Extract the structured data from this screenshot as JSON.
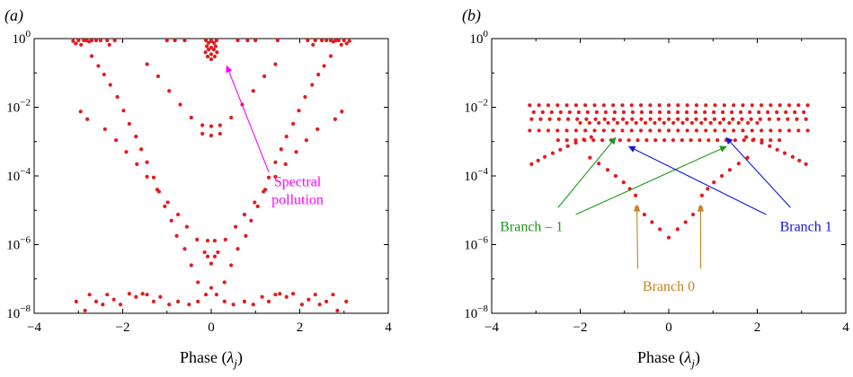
{
  "chart_data": [
    {
      "type": "scatter",
      "panel_label": "(a)",
      "xlabel": "Phase (λj)",
      "ylabel": "",
      "xlim": [
        -4,
        4
      ],
      "ylim": [
        1e-08,
        1
      ],
      "yscale": "log",
      "x_ticks": [
        -4,
        -2,
        0,
        2,
        4
      ],
      "y_ticks": [
        "10^0",
        "10^-2",
        "10^-4",
        "10^-6",
        "10^-8"
      ],
      "grid": false,
      "marker_color": "#e41a1c",
      "points": [
        [
          -3.12,
          0.85
        ],
        [
          -3.06,
          0.72
        ],
        [
          -3.0,
          0.9
        ],
        [
          -2.94,
          0.66
        ],
        [
          -2.88,
          1.0
        ],
        [
          -2.82,
          0.95
        ],
        [
          -2.76,
          0.82
        ],
        [
          -2.7,
          1.0
        ],
        [
          -2.6,
          0.98
        ],
        [
          -2.5,
          1.0
        ],
        [
          -2.35,
          0.9
        ],
        [
          -2.18,
          0.95
        ],
        [
          -1.0,
          0.97
        ],
        [
          -0.82,
          1.0
        ],
        [
          -0.6,
          0.96
        ],
        [
          -0.12,
          0.95
        ],
        [
          0.0,
          0.88
        ],
        [
          0.12,
          0.95
        ],
        [
          -0.06,
          0.75
        ],
        [
          0.06,
          0.75
        ],
        [
          -0.1,
          0.6
        ],
        [
          0.1,
          0.6
        ],
        [
          0.0,
          0.55
        ],
        [
          -0.06,
          0.48
        ],
        [
          0.06,
          0.48
        ],
        [
          -0.13,
          0.4
        ],
        [
          0.13,
          0.4
        ],
        [
          0.0,
          0.35
        ],
        [
          -0.08,
          0.3
        ],
        [
          0.08,
          0.3
        ],
        [
          0.0,
          0.25
        ],
        [
          0.6,
          0.96
        ],
        [
          0.82,
          1.0
        ],
        [
          1.0,
          0.97
        ],
        [
          1.5,
          0.95
        ],
        [
          2.18,
          0.95
        ],
        [
          2.35,
          0.9
        ],
        [
          2.5,
          1.0
        ],
        [
          2.6,
          0.98
        ],
        [
          2.7,
          1.0
        ],
        [
          2.76,
          0.82
        ],
        [
          2.82,
          0.95
        ],
        [
          2.88,
          1.0
        ],
        [
          2.94,
          0.66
        ],
        [
          3.0,
          0.9
        ],
        [
          3.06,
          0.72
        ],
        [
          3.12,
          0.85
        ],
        [
          2.3,
          0.66
        ],
        [
          -2.3,
          0.66
        ],
        [
          -2.7,
          0.31
        ],
        [
          -2.55,
          0.16
        ],
        [
          -2.42,
          0.09
        ],
        [
          -2.28,
          0.045
        ],
        [
          -2.12,
          0.02
        ],
        [
          -1.98,
          0.008
        ],
        [
          -1.85,
          0.0033
        ],
        [
          -1.7,
          0.0014
        ],
        [
          -1.58,
          0.0006
        ],
        [
          -1.45,
          0.00025
        ],
        [
          -1.3,
          9e-05
        ],
        [
          -1.18,
          3.5e-05
        ],
        [
          -1.05,
          1.3e-05
        ],
        [
          -0.9,
          5e-06
        ],
        [
          -0.78,
          1.8e-06
        ],
        [
          -0.6,
          7.5e-07
        ],
        [
          -0.45,
          2.5e-07
        ],
        [
          -0.3,
          8e-08
        ],
        [
          2.7,
          0.31
        ],
        [
          2.55,
          0.16
        ],
        [
          2.42,
          0.09
        ],
        [
          2.28,
          0.045
        ],
        [
          2.12,
          0.02
        ],
        [
          1.98,
          0.008
        ],
        [
          1.85,
          0.0033
        ],
        [
          1.7,
          0.0014
        ],
        [
          1.58,
          0.0006
        ],
        [
          1.45,
          0.00025
        ],
        [
          1.3,
          9e-05
        ],
        [
          1.18,
          3.5e-05
        ],
        [
          1.05,
          1.3e-05
        ],
        [
          0.9,
          5e-06
        ],
        [
          0.78,
          1.8e-06
        ],
        [
          0.6,
          7.5e-07
        ],
        [
          0.45,
          2.5e-07
        ],
        [
          0.3,
          8e-08
        ],
        [
          -1.45,
          0.18
        ],
        [
          -1.2,
          0.08
        ],
        [
          -0.95,
          0.03
        ],
        [
          -0.7,
          0.012
        ],
        [
          -0.45,
          0.005
        ],
        [
          -0.2,
          0.003
        ],
        [
          0.0,
          0.0028
        ],
        [
          0.2,
          0.003
        ],
        [
          0.45,
          0.005
        ],
        [
          0.7,
          0.012
        ],
        [
          0.95,
          0.03
        ],
        [
          1.2,
          0.08
        ],
        [
          1.45,
          0.18
        ],
        [
          -0.2,
          0.0017
        ],
        [
          0.0,
          0.0015
        ],
        [
          0.2,
          0.0017
        ],
        [
          -2.4,
          0.0023
        ],
        [
          -2.15,
          0.0011
        ],
        [
          -1.92,
          0.0005
        ],
        [
          -1.68,
          0.00022
        ],
        [
          -1.45,
          9.5e-05
        ],
        [
          -1.22,
          4e-05
        ],
        [
          -0.98,
          1.7e-05
        ],
        [
          -0.75,
          7.5e-06
        ],
        [
          -0.55,
          3.3e-06
        ],
        [
          -0.32,
          1.4e-06
        ],
        [
          -0.15,
          6e-07
        ],
        [
          0.0,
          2.8e-07
        ],
        [
          0.15,
          6e-07
        ],
        [
          0.32,
          1.4e-06
        ],
        [
          0.55,
          3.3e-06
        ],
        [
          0.75,
          7.5e-06
        ],
        [
          0.98,
          1.7e-05
        ],
        [
          1.22,
          4e-05
        ],
        [
          1.45,
          9.5e-05
        ],
        [
          1.68,
          0.00022
        ],
        [
          1.92,
          0.0005
        ],
        [
          2.15,
          0.0011
        ],
        [
          2.4,
          0.0023
        ],
        [
          -2.95,
          0.0075
        ],
        [
          -2.8,
          0.0045
        ],
        [
          2.95,
          0.0075
        ],
        [
          2.8,
          0.0045
        ],
        [
          -0.08,
          1.3e-06
        ],
        [
          0.08,
          1.3e-06
        ],
        [
          -0.08,
          4.5e-07
        ],
        [
          0.08,
          4.5e-07
        ],
        [
          -3.05,
          2.2e-08
        ],
        [
          -2.85,
          1.2e-08
        ],
        [
          -2.75,
          3.5e-08
        ],
        [
          -2.6,
          2.2e-08
        ],
        [
          -2.45,
          1.8e-08
        ],
        [
          -2.35,
          3.5e-08
        ],
        [
          -2.2,
          2.5e-08
        ],
        [
          -2.05,
          1.8e-08
        ],
        [
          -1.85,
          3.7e-08
        ],
        [
          -1.7,
          3e-08
        ],
        [
          -1.55,
          3.7e-08
        ],
        [
          -1.45,
          3.5e-08
        ],
        [
          -1.3,
          2.2e-08
        ],
        [
          -1.15,
          3e-08
        ],
        [
          -0.95,
          1.8e-08
        ],
        [
          -0.75,
          2.2e-08
        ],
        [
          -0.5,
          1.8e-08
        ],
        [
          -0.3,
          2.2e-08
        ],
        [
          -0.12,
          3.5e-08
        ],
        [
          0.0,
          5.5e-08
        ],
        [
          0.12,
          3.5e-08
        ],
        [
          0.3,
          2.2e-08
        ],
        [
          0.5,
          1.8e-08
        ],
        [
          0.75,
          2.2e-08
        ],
        [
          0.95,
          1.8e-08
        ],
        [
          1.15,
          3e-08
        ],
        [
          1.3,
          2.2e-08
        ],
        [
          1.45,
          3.5e-08
        ],
        [
          1.55,
          3.7e-08
        ],
        [
          1.7,
          3e-08
        ],
        [
          1.85,
          3.7e-08
        ],
        [
          2.05,
          1.8e-08
        ],
        [
          2.2,
          2.5e-08
        ],
        [
          2.35,
          3.5e-08
        ],
        [
          2.45,
          1.8e-08
        ],
        [
          2.6,
          2.2e-08
        ],
        [
          2.75,
          3.5e-08
        ],
        [
          2.85,
          1.2e-08
        ],
        [
          3.05,
          2.2e-08
        ]
      ],
      "annotations": [
        {
          "lines": [
            "Spectral",
            "pollution"
          ],
          "color": "#ff00ff",
          "text_at": [
            1.95,
            5e-05
          ],
          "arrow_from": [
            1.3,
            0.00013
          ],
          "arrow_to": [
            0.35,
            0.16
          ]
        }
      ]
    },
    {
      "type": "scatter",
      "panel_label": "(b)",
      "xlabel": "Phase (λj)",
      "ylabel": "",
      "xlim": [
        -4,
        4
      ],
      "ylim": [
        1e-08,
        1
      ],
      "yscale": "log",
      "x_ticks": [
        -4,
        -2,
        0,
        2,
        4
      ],
      "y_ticks": [
        "10^0",
        "10^-2",
        "10^-4",
        "10^-6",
        "10^-8"
      ],
      "grid": false,
      "marker_color": "#e41a1c",
      "band_rows": [
        {
          "y": 0.0115,
          "x_from": -3.14,
          "x_to": 3.14,
          "n": 31
        },
        {
          "y": 0.0072,
          "x_from": -3.05,
          "x_to": 3.05,
          "n": 31
        },
        {
          "y": 0.0045,
          "x_from": -3.1,
          "x_to": 3.1,
          "n": 31
        },
        {
          "y": 0.0035,
          "x_from": -2.0,
          "x_to": 2.0,
          "n": 20
        },
        {
          "y": 0.0021,
          "x_from": -3.14,
          "x_to": 3.14,
          "n": 31
        },
        {
          "y": 0.0011,
          "x_from": -2.5,
          "x_to": 2.5,
          "n": 26
        }
      ],
      "points": [
        [
          -3.1,
          0.00022
        ],
        [
          -2.95,
          0.00028
        ],
        [
          -2.8,
          0.00036
        ],
        [
          -2.62,
          0.00046
        ],
        [
          -2.45,
          0.00058
        ],
        [
          -2.28,
          0.00074
        ],
        [
          -2.1,
          0.00093
        ],
        [
          -1.92,
          0.00115
        ],
        [
          -1.75,
          0.00135
        ],
        [
          3.1,
          0.00022
        ],
        [
          2.95,
          0.00028
        ],
        [
          2.8,
          0.00036
        ],
        [
          2.62,
          0.00046
        ],
        [
          2.45,
          0.00058
        ],
        [
          2.28,
          0.00074
        ],
        [
          2.1,
          0.00093
        ],
        [
          1.92,
          0.00115
        ],
        [
          1.75,
          0.00135
        ],
        [
          -1.78,
          0.00034
        ],
        [
          -1.58,
          0.00023
        ],
        [
          -1.38,
          0.00015
        ],
        [
          -1.2,
          0.0001
        ],
        [
          -1.02,
          6.5e-05
        ],
        [
          -0.88,
          4.2e-05
        ],
        [
          -0.75,
          2.7e-05
        ],
        [
          1.78,
          0.00034
        ],
        [
          1.58,
          0.00023
        ],
        [
          1.38,
          0.00015
        ],
        [
          1.2,
          0.0001
        ],
        [
          1.02,
          6.5e-05
        ],
        [
          0.88,
          4.2e-05
        ],
        [
          0.75,
          2.7e-05
        ],
        [
          -0.72,
          1.2e-05
        ],
        [
          -0.55,
          7.5e-06
        ],
        [
          -0.38,
          4.5e-06
        ],
        [
          -0.2,
          2.8e-06
        ],
        [
          0.0,
          1.6e-06
        ],
        [
          0.2,
          2.8e-06
        ],
        [
          0.38,
          4.5e-06
        ],
        [
          0.55,
          7.5e-06
        ],
        [
          0.72,
          1.2e-05
        ]
      ],
      "annotations": [
        {
          "lines": [
            "Branch – 1"
          ],
          "color": "#1a9a1a",
          "text_at": [
            -3.1,
            2.5e-06
          ],
          "arrows": [
            {
              "from": [
                -2.5,
                1.2e-05
              ],
              "to": [
                -1.2,
                0.0013
              ]
            },
            {
              "from": [
                -2.1,
                7.5e-06
              ],
              "to": [
                1.3,
                0.00072
              ]
            }
          ]
        },
        {
          "lines": [
            "Branch 1"
          ],
          "color": "#1414dc",
          "text_at": [
            3.1,
            2.5e-06
          ],
          "arrows": [
            {
              "from": [
                2.75,
                1.2e-05
              ],
              "to": [
                1.3,
                0.0013
              ]
            },
            {
              "from": [
                2.2,
                7.5e-06
              ],
              "to": [
                -0.9,
                0.00072
              ]
            }
          ]
        },
        {
          "lines": [
            "Branch 0"
          ],
          "color": "#c8821e",
          "text_at": [
            0.0,
            4.5e-08
          ],
          "arrows": [
            {
              "from": [
                -0.7,
                2e-07
              ],
              "to": [
                -0.72,
                1.4e-05
              ]
            },
            {
              "from": [
                0.72,
                2e-07
              ],
              "to": [
                0.72,
                1.4e-05
              ]
            }
          ]
        }
      ]
    }
  ]
}
